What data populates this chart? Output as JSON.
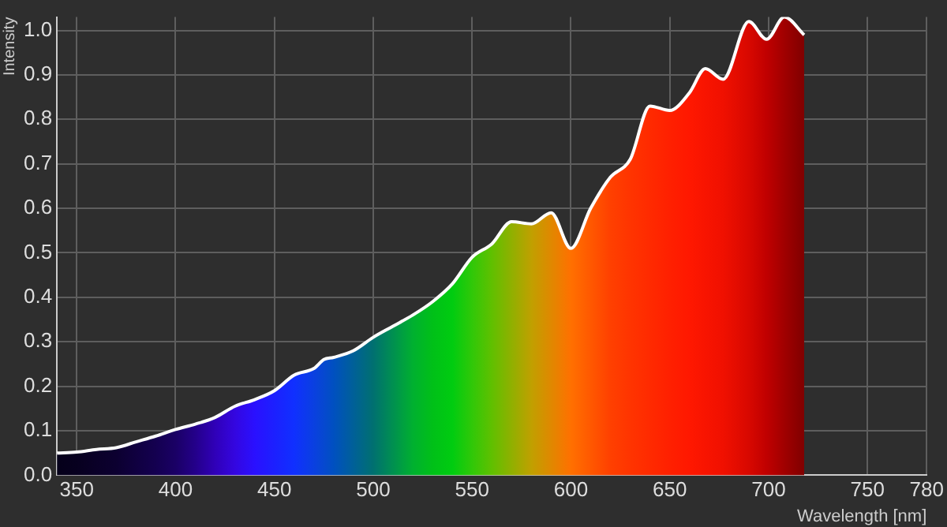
{
  "chart_data": {
    "type": "area",
    "xlabel": "Wavelength [nm]",
    "ylabel": "Intensity",
    "x": [
      340,
      350,
      360,
      370,
      380,
      390,
      400,
      410,
      420,
      430,
      440,
      450,
      460,
      470,
      475,
      480,
      490,
      500,
      510,
      520,
      530,
      540,
      550,
      560,
      570,
      580,
      590,
      600,
      610,
      620,
      630,
      640,
      650,
      660,
      668,
      677,
      690,
      699,
      708,
      718
    ],
    "series": [
      {
        "color": "#ffffff",
        "values": [
          0.05,
          0.052,
          0.058,
          0.062,
          0.075,
          0.088,
          0.103,
          0.115,
          0.13,
          0.155,
          0.17,
          0.19,
          0.225,
          0.24,
          0.26,
          0.265,
          0.28,
          0.31,
          0.335,
          0.36,
          0.39,
          0.43,
          0.49,
          0.52,
          0.57,
          0.565,
          0.59,
          0.51,
          0.6,
          0.67,
          0.71,
          0.83,
          0.82,
          0.86,
          0.914,
          0.89,
          1.02,
          0.98,
          1.03,
          0.99
        ],
        "colors": [
          "#05001a",
          "#07001f",
          "#0a0028",
          "#0c0030",
          "#100040",
          "#140050",
          "#1a0065",
          "#24008a",
          "#3000b8",
          "#3406e0",
          "#2a10ff",
          "#1c20ff",
          "#1030ff",
          "#0a40e0",
          "#0648d0",
          "#0050c0",
          "#006098",
          "#007070",
          "#009050",
          "#00b030",
          "#00c018",
          "#00cc10",
          "#30c808",
          "#60c000",
          "#90b000",
          "#c0a000",
          "#e08800",
          "#ff7000",
          "#ff5800",
          "#ff4000",
          "#ff3400",
          "#ff2a00",
          "#ff2000",
          "#ff1800",
          "#f81400",
          "#f01000",
          "#d80800",
          "#c00000",
          "#a00000",
          "#800000"
        ]
      }
    ],
    "xlim": [
      340,
      780
    ],
    "xticks": [
      350,
      400,
      450,
      500,
      550,
      600,
      650,
      700,
      750,
      780
    ],
    "ylim": [
      0,
      1.03
    ],
    "yticks": [
      {
        "value": 0,
        "label": "0.0"
      },
      {
        "value": 0.1,
        "label": "0.1"
      },
      {
        "value": 0.2,
        "label": "0.2"
      },
      {
        "value": 0.3,
        "label": "0.3"
      },
      {
        "value": 0.4,
        "label": "0.4"
      },
      {
        "value": 0.5,
        "label": "0.5"
      },
      {
        "value": 0.6,
        "label": "0.6"
      },
      {
        "value": 0.7,
        "label": "0.7"
      },
      {
        "value": 0.8,
        "label": "0.8"
      },
      {
        "value": 0.9,
        "label": "0.9"
      },
      {
        "value": 1,
        "label": "1.0"
      }
    ],
    "grid": true,
    "legend": false
  }
}
